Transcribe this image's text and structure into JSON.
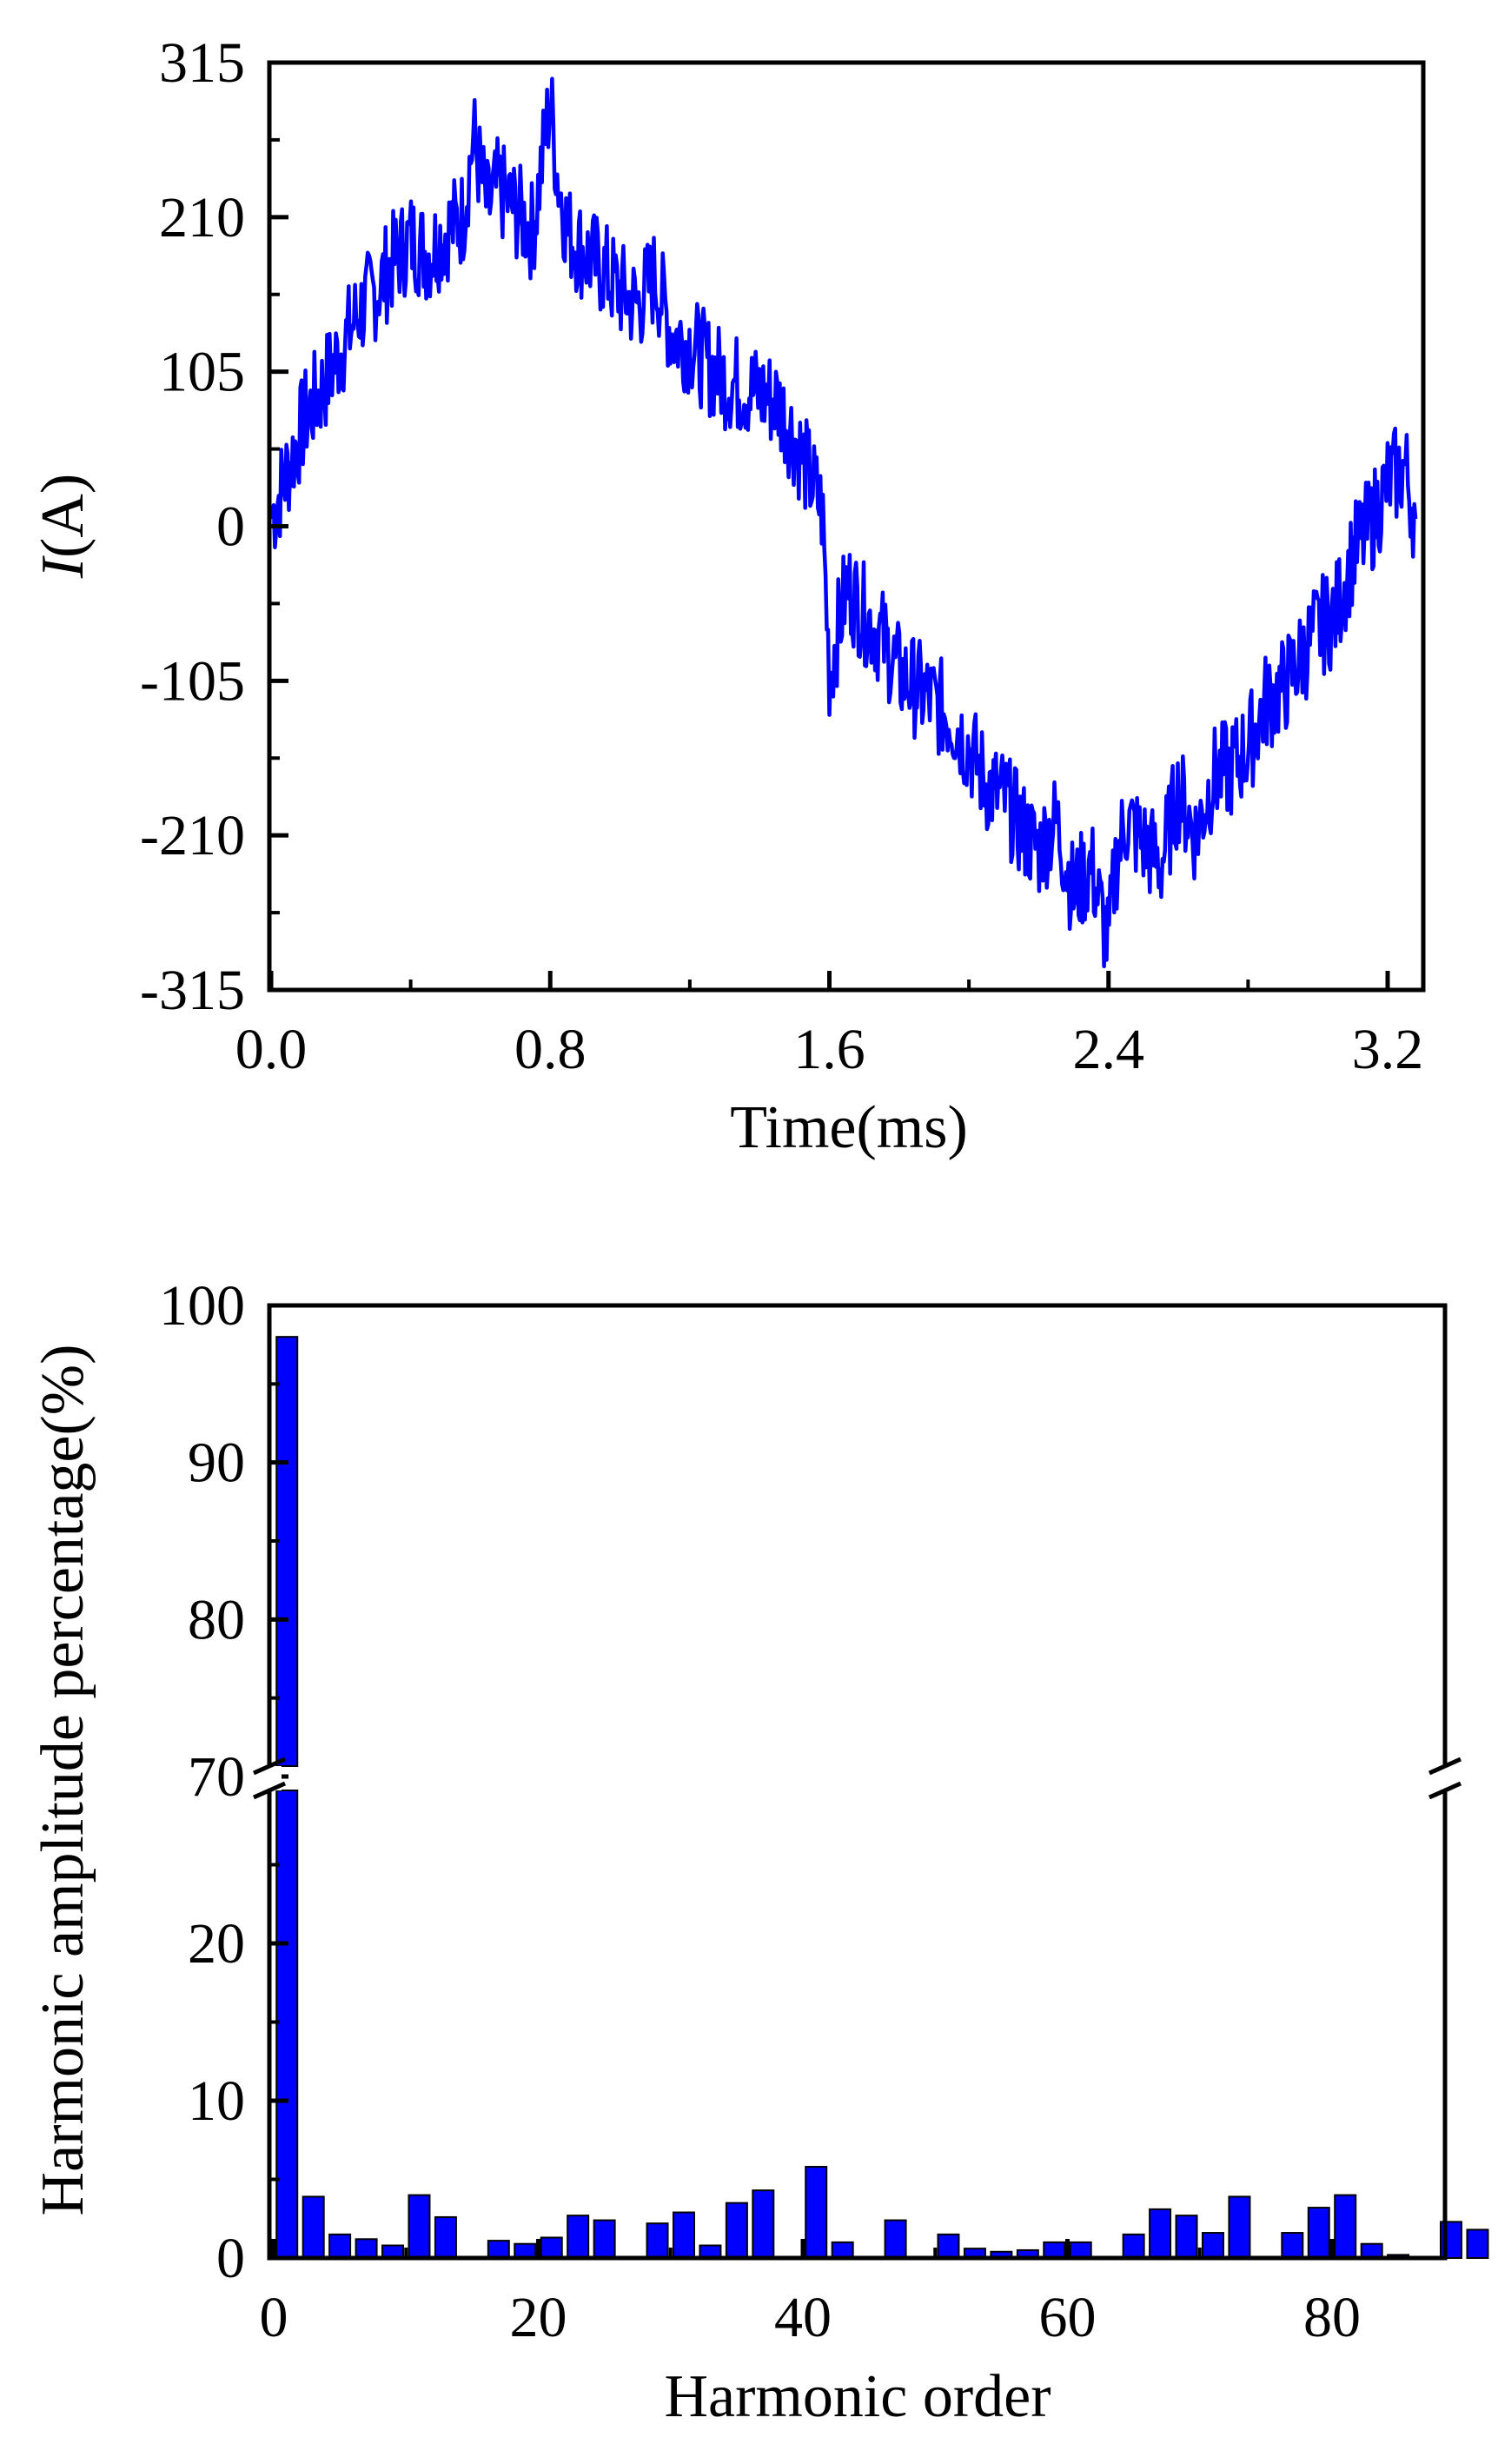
{
  "colors": {
    "series": "#0000ff",
    "axis": "#000000",
    "background": "#ffffff"
  },
  "chart_data": [
    {
      "type": "line",
      "xlabel": "Time(ms)",
      "ylabel_italic": "I",
      "ylabel_rest": "(A)",
      "xlim": [
        0.0,
        3.3
      ],
      "ylim": [
        -315,
        315
      ],
      "x_ticks": [
        "0.0",
        "0.8",
        "1.6",
        "2.4",
        "3.2"
      ],
      "x_tick_values": [
        0.0,
        0.8,
        1.6,
        2.4,
        3.2
      ],
      "y_ticks": [
        "315",
        "210",
        "105",
        "0",
        "-105",
        "-210",
        "-315"
      ],
      "y_tick_values": [
        315,
        210,
        105,
        0,
        -105,
        -210,
        -315
      ],
      "grid": false,
      "series": [
        {
          "color": "#0000ff",
          "amplitude": 225,
          "period_ms": 3.2,
          "x": [
            0.0,
            0.05,
            0.1,
            0.15,
            0.2,
            0.25,
            0.3,
            0.35,
            0.4,
            0.45,
            0.5,
            0.55,
            0.58,
            0.62,
            0.65,
            0.7,
            0.75,
            0.8,
            0.82,
            0.85,
            0.9,
            0.95,
            1.0,
            1.05,
            1.1,
            1.15,
            1.2,
            1.25,
            1.3,
            1.35,
            1.4,
            1.45,
            1.5,
            1.55,
            1.58,
            1.6,
            1.65,
            1.7,
            1.75,
            1.8,
            1.85,
            1.9,
            1.95,
            2.0,
            2.05,
            2.1,
            2.15,
            2.2,
            2.25,
            2.3,
            2.35,
            2.4,
            2.42,
            2.45,
            2.5,
            2.55,
            2.6,
            2.65,
            2.7,
            2.75,
            2.8,
            2.85,
            2.9,
            2.95,
            3.0,
            3.05,
            3.1,
            3.15,
            3.2,
            3.25,
            3.28
          ],
          "y": [
            5,
            40,
            75,
            95,
            120,
            145,
            160,
            180,
            195,
            185,
            200,
            210,
            265,
            215,
            230,
            215,
            200,
            290,
            240,
            200,
            185,
            175,
            160,
            150,
            170,
            130,
            125,
            110,
            100,
            95,
            90,
            85,
            60,
            30,
            10,
            -100,
            -40,
            -60,
            -75,
            -100,
            -110,
            -120,
            -130,
            -150,
            -175,
            -185,
            -205,
            -220,
            -200,
            -250,
            -230,
            -285,
            -230,
            -200,
            -215,
            -230,
            -180,
            -210,
            -170,
            -165,
            -150,
            -120,
            -110,
            -90,
            -70,
            -60,
            -20,
            0,
            30,
            40,
            5
          ]
        }
      ]
    },
    {
      "type": "bar",
      "xlabel": "Harmonic order",
      "ylabel": "Harmonic amplitude percentage(%)",
      "xlim": [
        0,
        92
      ],
      "y_axis_break": {
        "lower": [
          0,
          70
        ],
        "upper": [
          70,
          100
        ]
      },
      "x_ticks": [
        "0",
        "20",
        "40",
        "60",
        "80"
      ],
      "x_tick_values": [
        0,
        20,
        40,
        60,
        80
      ],
      "y_ticks_lower": [
        "0",
        "10",
        "20"
      ],
      "y_tick_values_lower": [
        0,
        10,
        20
      ],
      "y_ticks_upper": [
        "70",
        "80",
        "90",
        "100"
      ],
      "y_tick_values_upper": [
        70,
        80,
        90,
        100
      ],
      "grid": false,
      "series": [
        {
          "color": "#0000ff",
          "categories": [
            1,
            3,
            5,
            7,
            9,
            11,
            13,
            15,
            17,
            19,
            21,
            23,
            25,
            27,
            29,
            31,
            33,
            35,
            37,
            39,
            41,
            43,
            45,
            47,
            49,
            51,
            53,
            55,
            57,
            59,
            61,
            63,
            65,
            67,
            69,
            71,
            73,
            75,
            77,
            79,
            81,
            83,
            85,
            87,
            89,
            91
          ],
          "values": [
            98,
            3.9,
            1.5,
            1.2,
            0.8,
            4.0,
            2.6,
            0.0,
            1.1,
            0.9,
            1.3,
            2.7,
            2.4,
            0.0,
            2.2,
            2.9,
            0.8,
            3.5,
            4.3,
            0.0,
            5.8,
            1.0,
            0.0,
            2.4,
            0.0,
            1.5,
            0.6,
            0.4,
            0.5,
            1.0,
            1.0,
            0.0,
            1.5,
            3.1,
            2.7,
            1.6,
            3.9,
            0.0,
            1.6,
            3.2,
            4.0,
            0.9,
            0.2,
            0.0,
            2.3,
            1.8
          ]
        }
      ]
    }
  ]
}
